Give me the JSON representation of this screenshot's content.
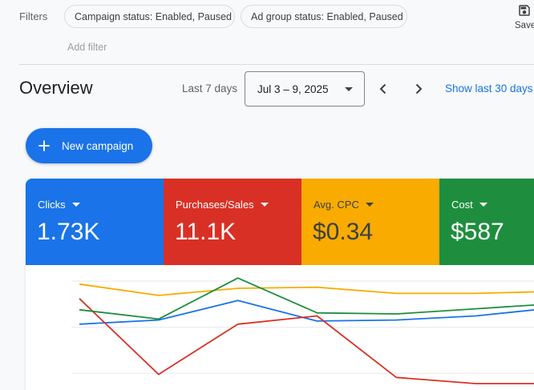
{
  "filters": {
    "label": "Filters",
    "chips": [
      "Campaign status: Enabled, Paused",
      "Ad group status: Enabled, Paused"
    ],
    "add_filter": "Add filter"
  },
  "toolbar": {
    "save_label": "Save",
    "save_icon": "save-icon"
  },
  "overview": {
    "title": "Overview",
    "range_label": "Last 7 days",
    "date_value": "Jul 3 – 9, 2025",
    "show_last": "Show last 30 days"
  },
  "actions": {
    "new_campaign": "New campaign"
  },
  "metrics": [
    {
      "name": "Clicks",
      "value": "1.73K",
      "color": "#1a73e8"
    },
    {
      "name": "Purchases/Sales",
      "value": "11.1K",
      "color": "#d93025"
    },
    {
      "name": "Avg. CPC",
      "value": "$0.34",
      "color": "#f9ab00"
    },
    {
      "name": "Cost",
      "value": "$587",
      "color": "#1e8e3e"
    }
  ],
  "chart_data": {
    "type": "line",
    "x": [
      1,
      2,
      3,
      4,
      5,
      6,
      7
    ],
    "ylim": [
      0,
      1
    ],
    "grid": true,
    "series": [
      {
        "name": "Clicks",
        "color": "#1a73e8",
        "values": [
          0.58,
          0.62,
          0.81,
          0.61,
          0.62,
          0.66,
          0.74
        ]
      },
      {
        "name": "Purchases/Sales",
        "color": "#d93025",
        "values": [
          0.83,
          0.09,
          0.58,
          0.66,
          0.06,
          0.0,
          0.0
        ]
      },
      {
        "name": "Avg. CPC",
        "color": "#f9ab00",
        "values": [
          0.97,
          0.86,
          0.93,
          0.94,
          0.88,
          0.88,
          0.9
        ]
      },
      {
        "name": "Cost",
        "color": "#1e8e3e",
        "values": [
          0.72,
          0.63,
          1.03,
          0.69,
          0.68,
          0.73,
          0.78
        ]
      }
    ]
  }
}
